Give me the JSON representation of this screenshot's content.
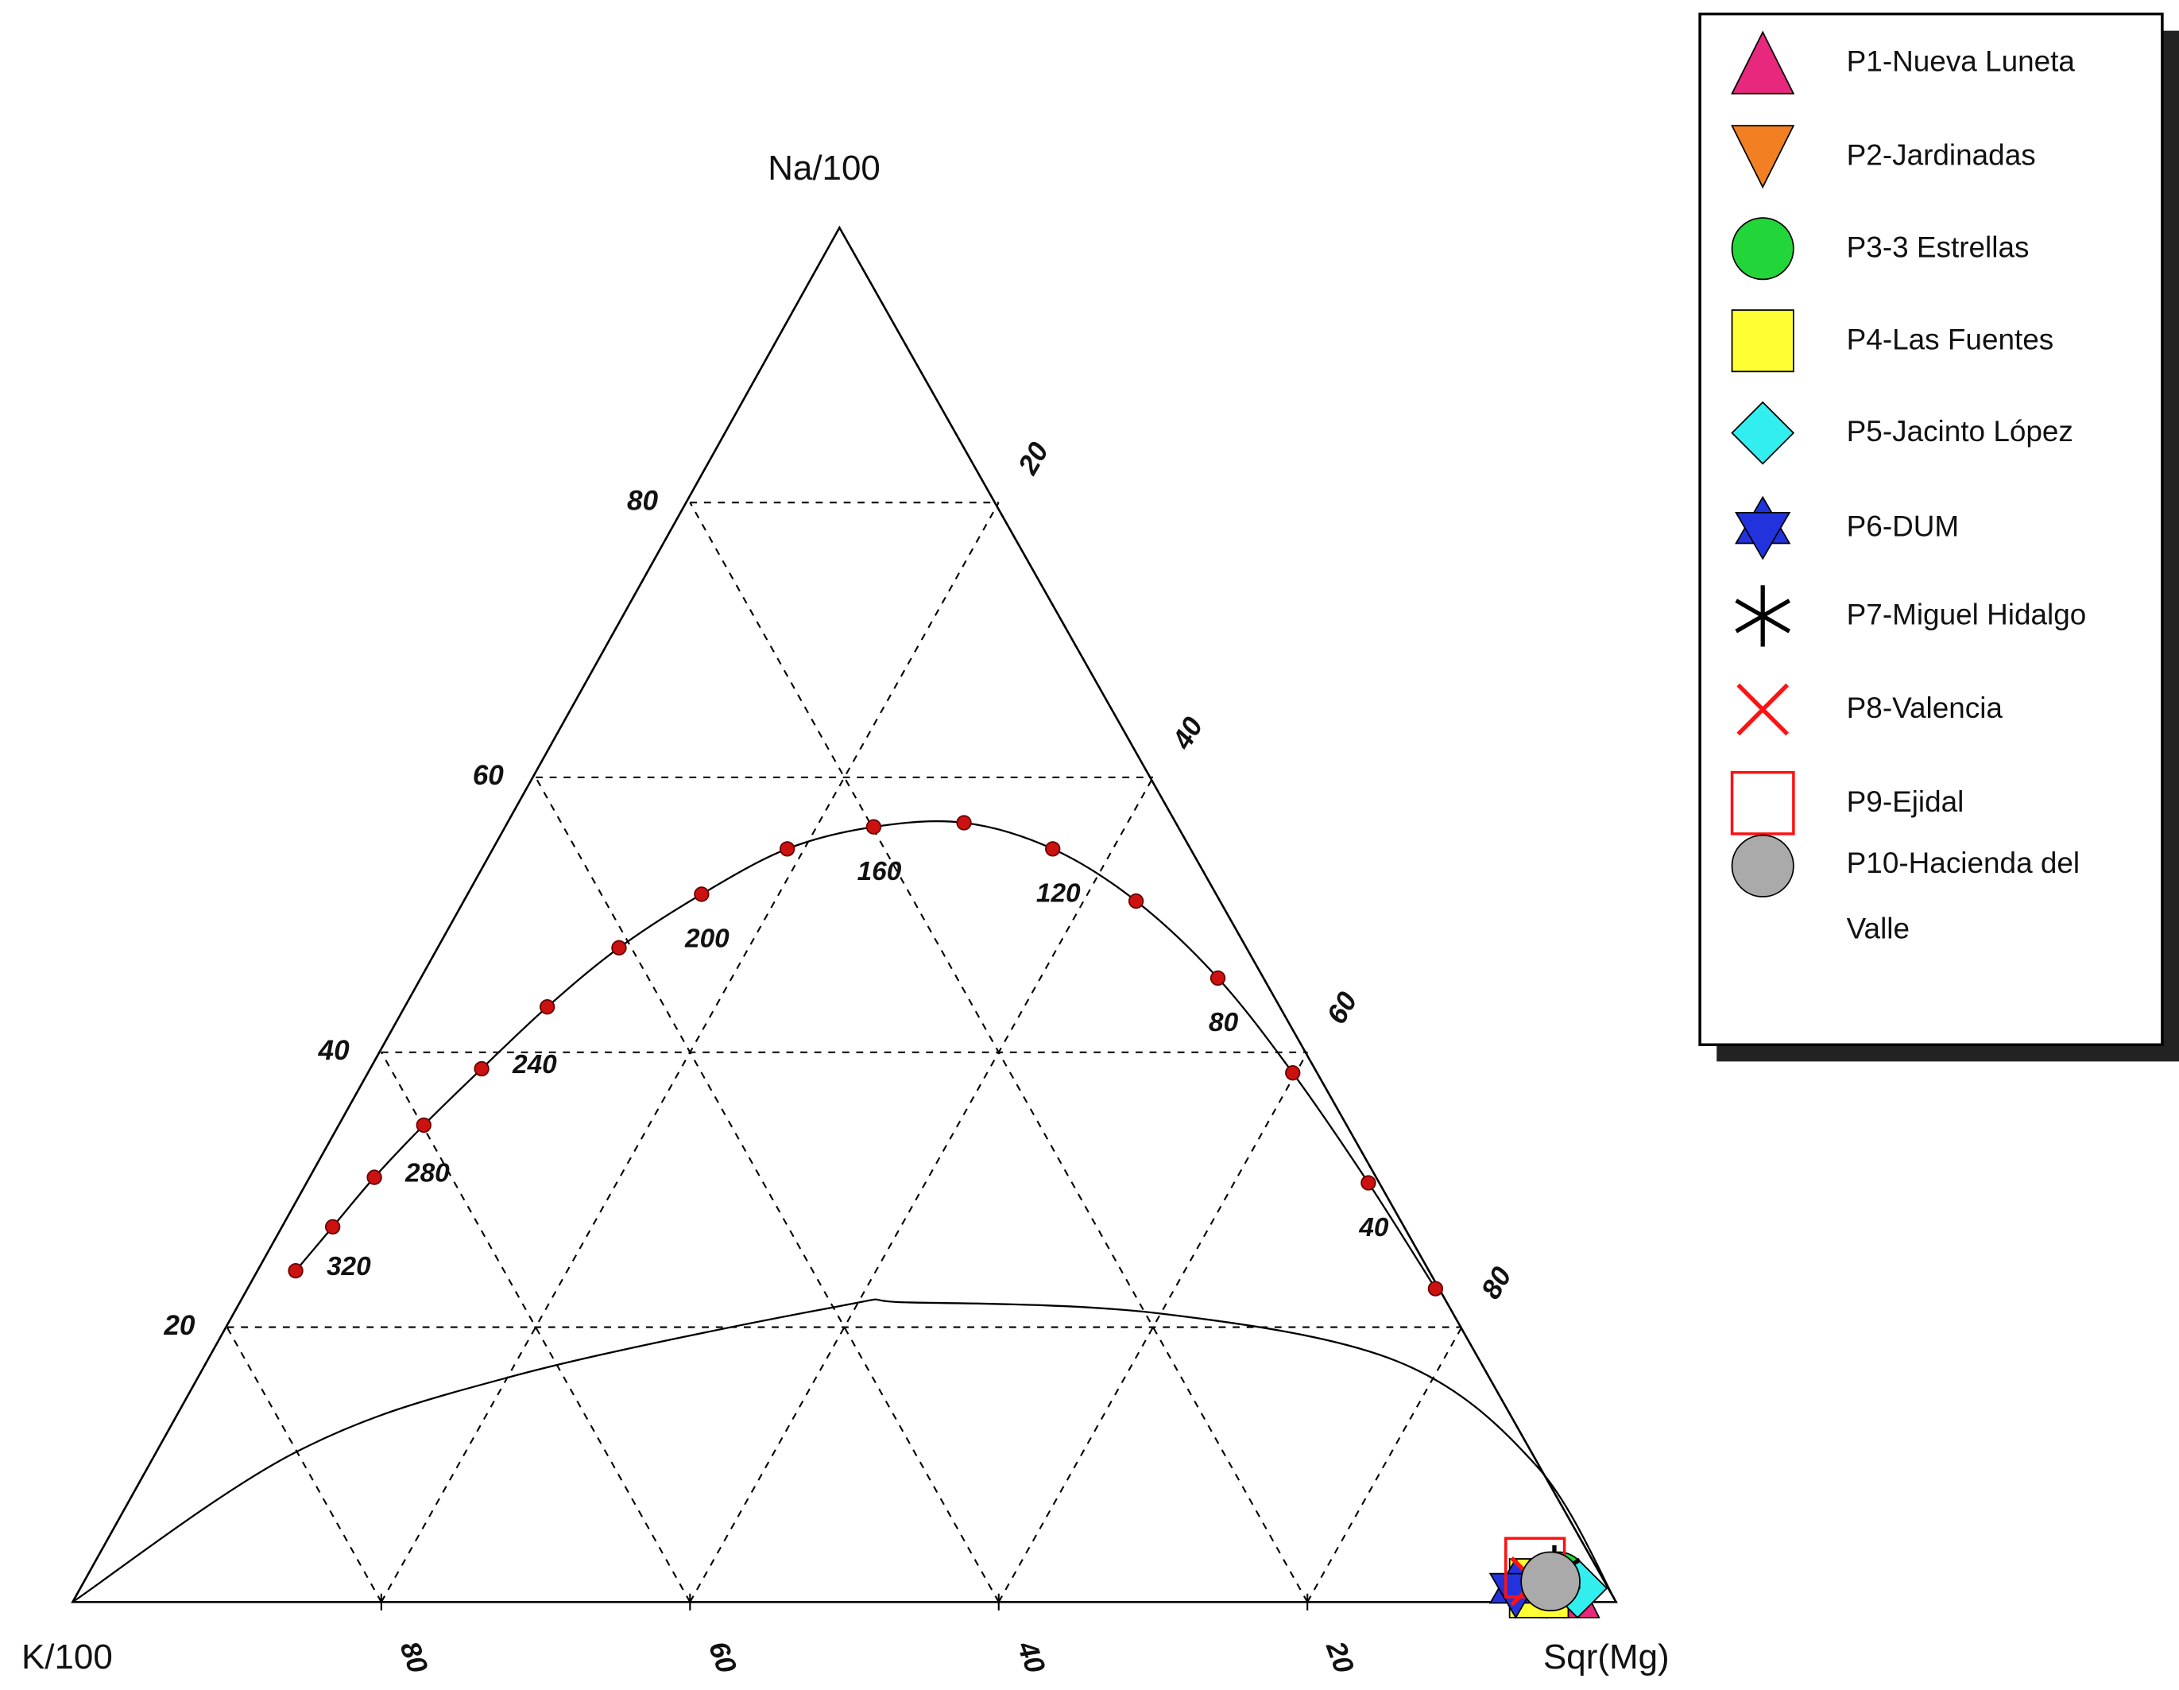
{
  "chart_data": {
    "type": "ternary",
    "axes": {
      "na": {
        "label": "Na/100",
        "ticks": [
          20,
          40,
          60,
          80
        ]
      },
      "mg": {
        "label": "Sqr(Mg)",
        "ticks": [
          20,
          40,
          60,
          80
        ]
      },
      "k": {
        "label": "K/100",
        "ticks": [
          80,
          60,
          40,
          20
        ]
      }
    },
    "grid": true,
    "full_equilibrium": {
      "color": "#cc1111",
      "na": [
        24.1,
        27.3,
        30.9,
        34.7,
        38.8,
        43.3,
        47.6,
        51.5,
        54.8,
        56.4,
        56.7,
        54.8,
        51.0,
        45.4,
        38.5,
        30.5,
        22.8
      ],
      "mg": [
        2.4,
        3.2,
        4.1,
        5.4,
        7.1,
        9.1,
        11.6,
        15.0,
        18.9,
        23.7,
        29.4,
        36.1,
        43.4,
        51.5,
        59.8,
        68.7,
        76.9
      ],
      "temperature_labels": [
        320,
        null,
        280,
        null,
        240,
        null,
        null,
        200,
        null,
        160,
        null,
        120,
        null,
        80,
        null,
        40,
        null
      ]
    },
    "partial_equilibrium": {
      "na": [
        0,
        10.9,
        16.5,
        21.5,
        21.8,
        21.0,
        17.5,
        9.9,
        0
      ],
      "mg": [
        0,
        9.0,
        20.5,
        38.8,
        43.2,
        59.9,
        77.1,
        89.9,
        100
      ]
    },
    "legend": "top-right",
    "series": [
      {
        "name": "P1-Nueva Luneta",
        "color": "#e8287c",
        "marker": "triangle-up",
        "na": [
          1.0
        ],
        "mg": [
          96.5
        ]
      },
      {
        "name": "P2-Jardinadas",
        "color": "#f28022",
        "marker": "triangle-down",
        "na": [
          1.0
        ],
        "mg": [
          95.0
        ]
      },
      {
        "name": "P3-3 Estrellas",
        "color": "#22d63a",
        "marker": "circle",
        "na": [
          1.5
        ],
        "mg": [
          95.5
        ]
      },
      {
        "name": "P4-Las Fuentes",
        "color": "#ffff33",
        "marker": "square",
        "na": [
          1.0
        ],
        "mg": [
          94.5
        ]
      },
      {
        "name": "P5-Jacinto López",
        "color": "#33eeee",
        "marker": "diamond",
        "na": [
          1.0
        ],
        "mg": [
          97.0
        ]
      },
      {
        "name": "P6-DUM",
        "color": "#2233dd",
        "marker": "star6",
        "na": [
          1.0
        ],
        "mg": [
          93.0
        ]
      },
      {
        "name": "P7-Miguel Hidalgo",
        "color": "#000000",
        "marker": "asterisk",
        "na": [
          2.0
        ],
        "mg": [
          95.0
        ]
      },
      {
        "name": "P8-Valencia",
        "color": "#ff1111",
        "marker": "x",
        "na": [
          1.5
        ],
        "mg": [
          94.0
        ]
      },
      {
        "name": "P9-Ejidal",
        "color": "#ff1111",
        "marker": "square-open",
        "na": [
          2.5
        ],
        "mg": [
          93.5
        ]
      },
      {
        "name": "P10-Hacienda del Valle",
        "color": "#aaaaaa",
        "marker": "circle",
        "na": [
          1.5
        ],
        "mg": [
          95.0
        ]
      }
    ]
  }
}
